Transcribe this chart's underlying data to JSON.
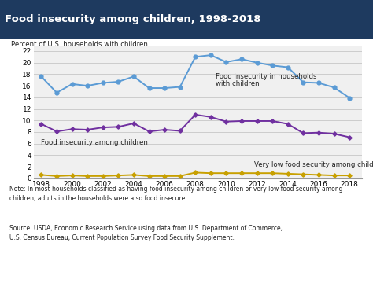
{
  "title": "Food insecurity among children, 1998-2018",
  "title_bg_color": "#1e3a5f",
  "title_text_color": "#ffffff",
  "ylabel": "Percent of U.S. households with children",
  "years": [
    1998,
    1999,
    2000,
    2001,
    2002,
    2003,
    2004,
    2005,
    2006,
    2007,
    2008,
    2009,
    2010,
    2011,
    2012,
    2013,
    2014,
    2015,
    2016,
    2017,
    2018
  ],
  "line1_label_line1": "Food insecurity in households",
  "line1_label_line2": "with children",
  "line1_color": "#5b9bd5",
  "line1_values": [
    17.6,
    14.8,
    16.3,
    16.0,
    16.5,
    16.7,
    17.6,
    15.6,
    15.6,
    15.8,
    21.0,
    21.3,
    20.1,
    20.6,
    20.0,
    19.5,
    19.2,
    16.6,
    16.5,
    15.7,
    13.9
  ],
  "line2_label": "Food insecurity among children",
  "line2_color": "#7030a0",
  "line2_values": [
    9.4,
    8.1,
    8.5,
    8.4,
    8.8,
    8.9,
    9.5,
    8.1,
    8.4,
    8.2,
    11.0,
    10.6,
    9.8,
    9.9,
    9.9,
    9.9,
    9.4,
    7.8,
    7.9,
    7.7,
    7.1
  ],
  "line3_label": "Very low food security among children",
  "line3_color": "#c8a000",
  "line3_values": [
    0.6,
    0.4,
    0.5,
    0.4,
    0.4,
    0.5,
    0.6,
    0.4,
    0.4,
    0.4,
    1.0,
    0.9,
    0.9,
    0.9,
    0.9,
    0.9,
    0.8,
    0.7,
    0.6,
    0.5,
    0.5
  ],
  "ylim": [
    0,
    23
  ],
  "yticks": [
    0,
    2,
    4,
    6,
    8,
    10,
    12,
    14,
    16,
    18,
    20,
    22
  ],
  "xticks": [
    1998,
    2000,
    2002,
    2004,
    2006,
    2008,
    2010,
    2012,
    2014,
    2016,
    2018
  ],
  "note_text": "Note: In most households classified as having food insecurity among children or very low food security among\nchildren, adults in the households were also food insecure.",
  "source_text": "Source: USDA, Economic Research Service using data from U.S. Department of Commerce,\nU.S. Census Bureau, Current Population Survey Food Security Supplement.",
  "bg_color": "#ffffff",
  "plot_bg_color": "#f0f0f0",
  "grid_color": "#cccccc",
  "marker_size": 3.5,
  "line_width": 1.4
}
